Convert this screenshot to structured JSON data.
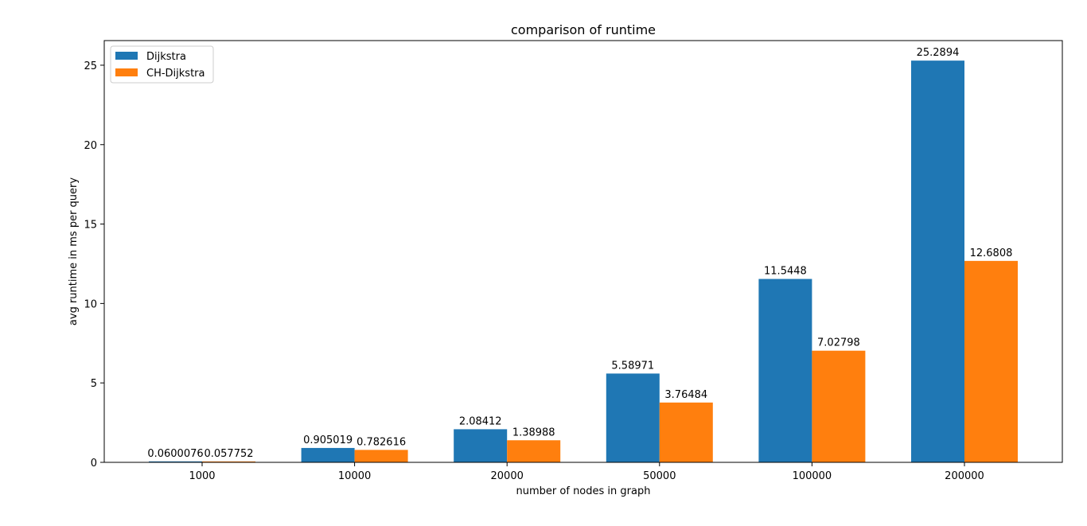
{
  "chart_data": {
    "type": "bar",
    "title": "comparison of runtime",
    "xlabel": "number of nodes in graph",
    "ylabel": "avg runtime in ms per query",
    "categories": [
      "1000",
      "10000",
      "20000",
      "50000",
      "100000",
      "200000"
    ],
    "ylim": [
      0,
      26.55
    ],
    "yticks": [
      0,
      5,
      10,
      15,
      20,
      25
    ],
    "legend_position": "top-left",
    "grid": false,
    "series": [
      {
        "name": "Dijkstra",
        "color": "#1f77b4",
        "values": [
          0.0600076,
          0.905019,
          2.08412,
          5.58971,
          11.5448,
          25.2894
        ],
        "labels": [
          "0.0600076",
          "0.905019",
          "2.08412",
          "5.58971",
          "11.5448",
          "25.2894"
        ]
      },
      {
        "name": "CH-Dijkstra",
        "color": "#ff7f0e",
        "values": [
          0.057752,
          0.782616,
          1.38988,
          3.76484,
          7.02798,
          12.6808
        ],
        "labels": [
          "0.057752",
          "0.782616",
          "1.38988",
          "3.76484",
          "7.02798",
          "12.6808"
        ]
      }
    ]
  }
}
